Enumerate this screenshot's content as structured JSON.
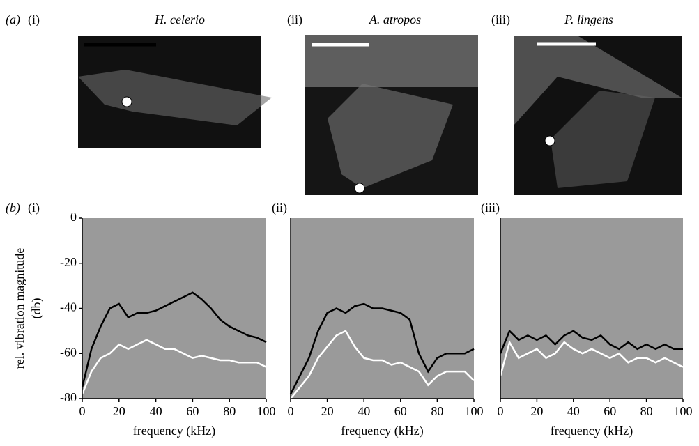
{
  "panel_a": {
    "label": "(a)",
    "items": [
      {
        "label": "(i)",
        "title": "H. celerio"
      },
      {
        "label": "(ii)",
        "title": "A. atropos"
      },
      {
        "label": "(iii)",
        "title": "P. lingens"
      }
    ]
  },
  "panel_b": {
    "label": "(b)"
  },
  "chart_data": [
    {
      "type": "line",
      "label": "(i)",
      "x": [
        0,
        5,
        10,
        15,
        20,
        25,
        30,
        35,
        40,
        45,
        50,
        55,
        60,
        65,
        70,
        75,
        80,
        85,
        90,
        95,
        100
      ],
      "series": [
        {
          "color": "#ffffff",
          "values": [
            -78,
            -68,
            -62,
            -60,
            -56,
            -58,
            -56,
            -54,
            -56,
            -58,
            -58,
            -60,
            -62,
            -61,
            -62,
            -63,
            -63,
            -64,
            -64,
            -64,
            -66
          ]
        },
        {
          "color": "#000000",
          "values": [
            -75,
            -58,
            -48,
            -40,
            -38,
            -44,
            -42,
            -42,
            -41,
            -39,
            -37,
            -35,
            -33,
            -36,
            -40,
            -45,
            -48,
            -50,
            -52,
            -53,
            -55
          ]
        }
      ],
      "xlim": [
        0,
        100
      ],
      "ylim": [
        -80,
        0
      ],
      "xticks": [
        0,
        20,
        40,
        60,
        80,
        100
      ],
      "yticks": [
        0,
        -20,
        -40,
        -60,
        -80
      ],
      "xlabel": "frequency (kHz)",
      "ylabel": [
        "rel. vibration magnitude",
        "(db)"
      ],
      "background": "#9a9a9a"
    },
    {
      "type": "line",
      "label": "(ii)",
      "x": [
        0,
        5,
        10,
        15,
        20,
        25,
        30,
        35,
        40,
        45,
        50,
        55,
        60,
        65,
        70,
        75,
        80,
        85,
        90,
        95,
        100
      ],
      "series": [
        {
          "color": "#ffffff",
          "values": [
            -80,
            -75,
            -70,
            -62,
            -57,
            -52,
            -50,
            -57,
            -62,
            -63,
            -63,
            -65,
            -64,
            -66,
            -68,
            -74,
            -70,
            -68,
            -68,
            -68,
            -72
          ]
        },
        {
          "color": "#000000",
          "values": [
            -78,
            -70,
            -62,
            -50,
            -42,
            -40,
            -42,
            -39,
            -38,
            -40,
            -40,
            -41,
            -42,
            -45,
            -60,
            -68,
            -62,
            -60,
            -60,
            -60,
            -58
          ]
        }
      ],
      "xlim": [
        0,
        100
      ],
      "ylim": [
        -80,
        0
      ],
      "xticks": [
        0,
        20,
        40,
        60,
        80,
        100
      ],
      "xlabel": "frequency (kHz)",
      "background": "#9a9a9a"
    },
    {
      "type": "line",
      "label": "(iii)",
      "x": [
        0,
        5,
        10,
        15,
        20,
        25,
        30,
        35,
        40,
        45,
        50,
        55,
        60,
        65,
        70,
        75,
        80,
        85,
        90,
        95,
        100
      ],
      "series": [
        {
          "color": "#000000",
          "values": [
            -60,
            -50,
            -54,
            -52,
            -54,
            -52,
            -56,
            -52,
            -50,
            -53,
            -54,
            -52,
            -56,
            -58,
            -55,
            -58,
            -56,
            -58,
            -56,
            -58,
            -58
          ]
        },
        {
          "color": "#ffffff",
          "values": [
            -70,
            -55,
            -62,
            -60,
            -58,
            -62,
            -60,
            -55,
            -58,
            -60,
            -58,
            -60,
            -62,
            -60,
            -64,
            -62,
            -62,
            -64,
            -62,
            -64,
            -66
          ]
        }
      ],
      "xlim": [
        0,
        100
      ],
      "ylim": [
        -80,
        0
      ],
      "xticks": [
        0,
        20,
        40,
        60,
        80,
        100
      ],
      "xlabel": "frequency (kHz)",
      "background": "#9a9a9a"
    }
  ]
}
